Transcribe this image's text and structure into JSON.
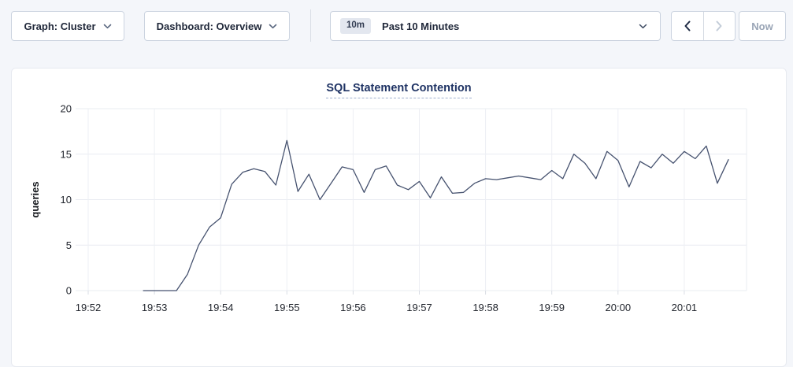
{
  "toolbar": {
    "graph_dropdown_label": "Graph: Cluster",
    "dashboard_dropdown_label": "Dashboard: Overview",
    "time_badge": "10m",
    "time_label": "Past 10 Minutes",
    "now_label": "Now"
  },
  "chart_data": {
    "type": "line",
    "title": "SQL Statement Contention",
    "ylabel": "queries",
    "ylim": [
      0,
      20
    ],
    "yticks": [
      0,
      5,
      10,
      15,
      20
    ],
    "xtick_labels": [
      "19:52",
      "19:53",
      "19:54",
      "19:55",
      "19:56",
      "19:57",
      "19:58",
      "19:59",
      "20:00",
      "20:01"
    ],
    "grid": true,
    "legend": "none",
    "line_color": "#46526f",
    "series": [
      {
        "name": "queries",
        "start_offset_seconds_after_first_tick": 50,
        "point_interval_seconds": 10,
        "values": [
          0,
          0,
          0,
          0,
          1.8,
          5,
          7,
          8,
          11.7,
          13,
          13.4,
          13.1,
          11.6,
          16.5,
          10.9,
          12.8,
          10,
          11.8,
          13.6,
          13.3,
          10.8,
          13.3,
          13.7,
          11.6,
          11.1,
          12,
          10.2,
          12.5,
          10.7,
          10.8,
          11.8,
          12.3,
          12.2,
          12.4,
          12.6,
          12.4,
          12.2,
          13.2,
          12.3,
          15,
          14,
          12.3,
          15.3,
          14.3,
          11.4,
          14.2,
          13.5,
          15,
          14,
          15.3,
          14.5,
          15.9,
          11.8,
          14.4
        ]
      }
    ]
  }
}
